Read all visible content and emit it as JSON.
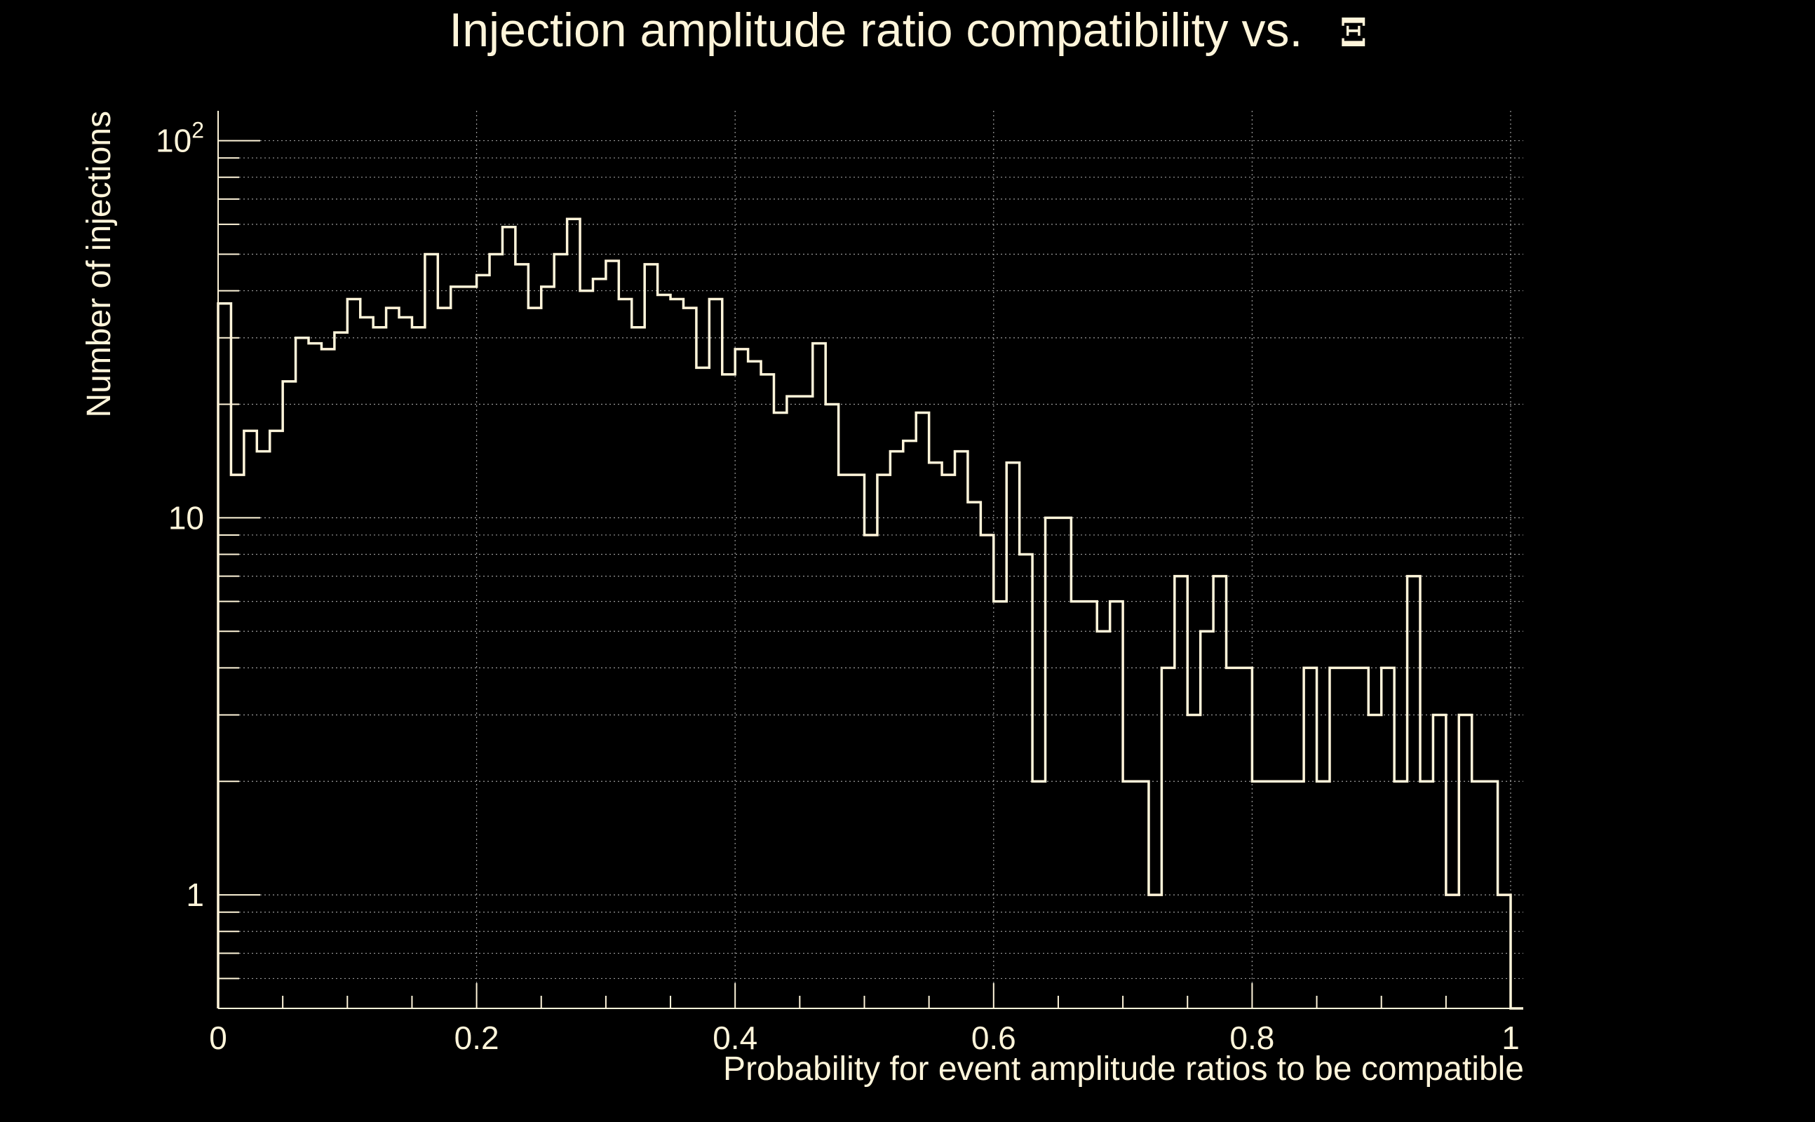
{
  "colors": {
    "background": "#000000",
    "foreground": "#fff5da",
    "grid": "#9a9a9a"
  },
  "chart_data": {
    "type": "bar",
    "style": "step-histogram",
    "title": "Injection amplitude ratio compatibility vs.",
    "title_symbol": "Ξ",
    "xlabel": "Probability for event amplitude ratios to be compatible",
    "ylabel": "Number of injections",
    "x_scale": "linear",
    "y_scale": "log",
    "xlim": [
      0,
      1
    ],
    "ylim": [
      0.5,
      120
    ],
    "grid": true,
    "legend": "none",
    "x_ticks": [
      {
        "value": 0,
        "label": "0"
      },
      {
        "value": 0.2,
        "label": "0.2"
      },
      {
        "value": 0.4,
        "label": "0.4"
      },
      {
        "value": 0.6,
        "label": "0.6"
      },
      {
        "value": 0.8,
        "label": "0.8"
      },
      {
        "value": 1,
        "label": "1"
      }
    ],
    "y_ticks": [
      {
        "value": 1,
        "label": "1",
        "base": "1",
        "exponent": ""
      },
      {
        "value": 10,
        "label": "10",
        "base": "10",
        "exponent": ""
      },
      {
        "value": 100,
        "label": "10^2",
        "base": "10",
        "exponent": "2"
      }
    ],
    "bin_width": 0.01,
    "bin_starts": [
      0.0,
      0.01,
      0.02,
      0.03,
      0.04,
      0.05,
      0.06,
      0.07,
      0.08,
      0.09,
      0.1,
      0.11,
      0.12,
      0.13,
      0.14,
      0.15,
      0.16,
      0.17,
      0.18,
      0.19,
      0.2,
      0.21,
      0.22,
      0.23,
      0.24,
      0.25,
      0.26,
      0.27,
      0.28,
      0.29,
      0.3,
      0.31,
      0.32,
      0.33,
      0.34,
      0.35,
      0.36,
      0.37,
      0.38,
      0.39,
      0.4,
      0.41,
      0.42,
      0.43,
      0.44,
      0.45,
      0.46,
      0.47,
      0.48,
      0.49,
      0.5,
      0.51,
      0.52,
      0.53,
      0.54,
      0.55,
      0.56,
      0.57,
      0.58,
      0.59,
      0.6,
      0.61,
      0.62,
      0.63,
      0.64,
      0.65,
      0.66,
      0.67,
      0.68,
      0.69,
      0.7,
      0.71,
      0.72,
      0.73,
      0.74,
      0.75,
      0.76,
      0.77,
      0.78,
      0.79,
      0.8,
      0.81,
      0.82,
      0.83,
      0.84,
      0.85,
      0.86,
      0.87,
      0.88,
      0.89,
      0.9,
      0.91,
      0.92,
      0.93,
      0.94,
      0.95,
      0.96,
      0.97,
      0.98,
      0.99
    ],
    "values": [
      37,
      13,
      17,
      15,
      17,
      23,
      30,
      29,
      28,
      31,
      38,
      34,
      32,
      36,
      34,
      32,
      50,
      36,
      41,
      41,
      44,
      50,
      59,
      47,
      36,
      41,
      50,
      62,
      40,
      43,
      48,
      38,
      32,
      47,
      39,
      38,
      36,
      25,
      38,
      24,
      28,
      26,
      24,
      19,
      21,
      21,
      29,
      20,
      13,
      13,
      9,
      13,
      15,
      16,
      19,
      14,
      13,
      15,
      11,
      9,
      6,
      14,
      8,
      2,
      10,
      10,
      6,
      6,
      5,
      6,
      2,
      2,
      1,
      4,
      7,
      3,
      5,
      7,
      4,
      4,
      2,
      2,
      2,
      2,
      4,
      2,
      4,
      4,
      4,
      3,
      4,
      2,
      7,
      2,
      3,
      1,
      3,
      2,
      2,
      1
    ]
  }
}
